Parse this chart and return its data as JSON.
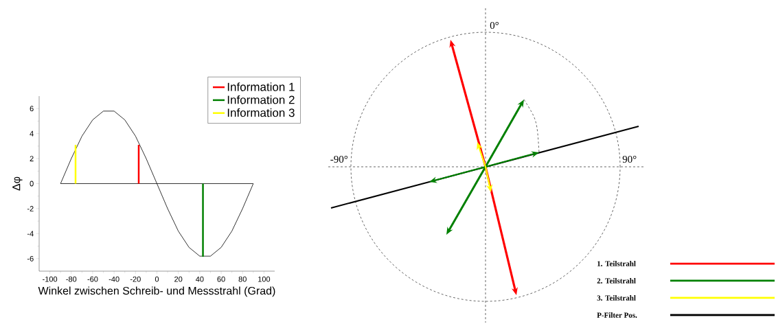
{
  "chart_data": [
    {
      "type": "line",
      "xlabel": "Winkel zwischen Schreib- und Messstrahl (Grad)",
      "ylabel": "Δφ",
      "xlim": [
        -110,
        110
      ],
      "ylim": [
        -7,
        7
      ],
      "xticks": [
        -100,
        -80,
        -60,
        -40,
        -20,
        0,
        20,
        40,
        60,
        80,
        100
      ],
      "yticks": [
        -6,
        -4,
        -2,
        0,
        2,
        4,
        6
      ],
      "legend": "top right",
      "grid": false,
      "ref_lines": [
        {
          "axis": "y",
          "value": 0,
          "color": "#000000"
        }
      ],
      "series": [
        {
          "color": "#000000",
          "x": [
            -90,
            -80,
            -70,
            -60,
            -50,
            -40,
            -30,
            -20,
            -10,
            0,
            10,
            20,
            30,
            40,
            50,
            60,
            70,
            80,
            90
          ],
          "values": [
            0,
            2.0,
            3.8,
            5.1,
            5.8,
            5.8,
            5.1,
            3.8,
            2.0,
            0,
            -2.0,
            -3.8,
            -5.1,
            -5.8,
            -5.8,
            -5.1,
            -3.8,
            -2.0,
            0
          ]
        },
        {
          "name": "Information 1",
          "color": "#ff0000",
          "x": [
            -17,
            -17
          ],
          "values": [
            0,
            3.1
          ]
        },
        {
          "name": "Information 2",
          "color": "#008000",
          "x": [
            43,
            43
          ],
          "values": [
            0,
            -5.85
          ]
        },
        {
          "name": "Information 3",
          "color": "#ffff00",
          "x": [
            -76,
            -76
          ],
          "values": [
            0,
            3.1
          ]
        }
      ]
    },
    {
      "type": "other",
      "categories": [
        "1. Teilstrahl",
        "2. Teilstrahl",
        "3. Teilstrahl",
        "P-Filter Pos."
      ],
      "colors": [
        "#ff0000",
        "#008000",
        "#ffff00",
        "#000000"
      ],
      "annotations": [
        "0°",
        "90°",
        "-90°"
      ]
    }
  ]
}
